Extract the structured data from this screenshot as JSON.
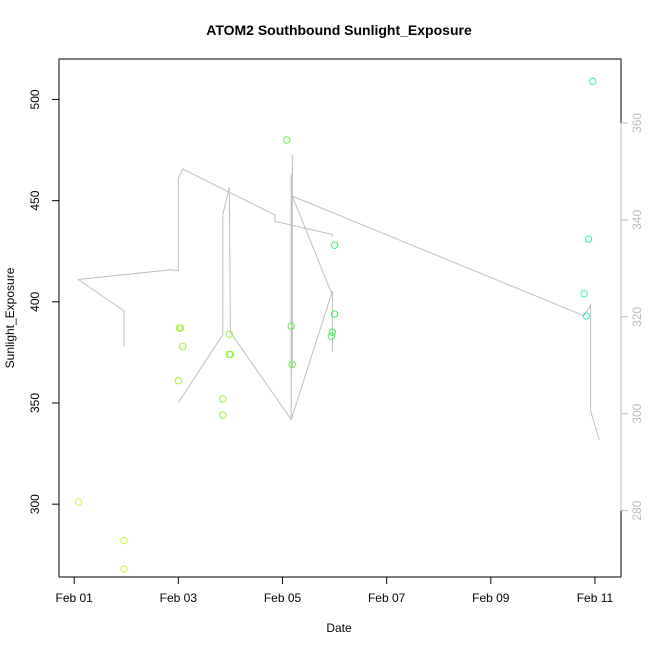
{
  "chart_data": {
    "type": "scatter",
    "title": "ATOM2 Southbound Sunlight_Exposure",
    "xlabel": "Date",
    "ylabel": "Sunlight_Exposure",
    "x_ticks": [
      "Feb 01",
      "Feb 03",
      "Feb 05",
      "Feb 07",
      "Feb 09",
      "Feb 11"
    ],
    "y_ticks": [
      300,
      350,
      400,
      450,
      500
    ],
    "y2_ticks": [
      280,
      300,
      320,
      340,
      360
    ],
    "xlim": [
      "2024-01-31 17:00",
      "2024-02-11 12:00"
    ],
    "ylim": [
      264,
      520
    ],
    "y2lim": [
      266.3,
      373.2
    ],
    "grid": false,
    "legend": "none",
    "colors": {
      "line": "#bebebe",
      "right_axis": "#bbbbbb",
      "point_early": "#c7f73a",
      "point_mid": "#3cf03c",
      "point_late": "#33f5a3"
    },
    "series": [
      {
        "type": "scatter",
        "axis": "left",
        "points": [
          {
            "x": "2024-02-01 02:00",
            "y": 301,
            "color": "#cff54a"
          },
          {
            "x": "2024-02-01 23:00",
            "y": 282,
            "color": "#c7f73a"
          },
          {
            "x": "2024-02-01 23:00",
            "y": 268,
            "color": "#c7f73a"
          },
          {
            "x": "2024-02-03 00:00",
            "y": 361,
            "color": "#a4f23a"
          },
          {
            "x": "2024-02-03 00:30",
            "y": 387,
            "color": "#a4f23a"
          },
          {
            "x": "2024-02-03 01:00",
            "y": 387,
            "color": "#a4f23a"
          },
          {
            "x": "2024-02-03 02:00",
            "y": 378,
            "color": "#a4f23a"
          },
          {
            "x": "2024-02-03 20:30",
            "y": 352,
            "color": "#8ef23a"
          },
          {
            "x": "2024-02-03 20:30",
            "y": 344,
            "color": "#8ef23a"
          },
          {
            "x": "2024-02-03 23:30",
            "y": 384,
            "color": "#8ef23a"
          },
          {
            "x": "2024-02-03 23:30",
            "y": 374,
            "color": "#8ef23a"
          },
          {
            "x": "2024-02-04 00:00",
            "y": 374,
            "color": "#8ef23a"
          },
          {
            "x": "2024-02-05 02:00",
            "y": 480,
            "color": "#5ef03c"
          },
          {
            "x": "2024-02-05 04:00",
            "y": 388,
            "color": "#5ef03c"
          },
          {
            "x": "2024-02-05 04:30",
            "y": 369,
            "color": "#5ef03c"
          },
          {
            "x": "2024-02-05 22:30",
            "y": 383,
            "color": "#3cf05a"
          },
          {
            "x": "2024-02-05 23:00",
            "y": 385,
            "color": "#3cf05a"
          },
          {
            "x": "2024-02-06 00:00",
            "y": 428,
            "color": "#3cf05a"
          },
          {
            "x": "2024-02-06 00:00",
            "y": 394,
            "color": "#3cf05a"
          },
          {
            "x": "2024-02-10 19:00",
            "y": 404,
            "color": "#33f5a3"
          },
          {
            "x": "2024-02-10 20:00",
            "y": 393,
            "color": "#33f5a3"
          },
          {
            "x": "2024-02-10 21:00",
            "y": 431,
            "color": "#33f5a3"
          },
          {
            "x": "2024-02-10 23:00",
            "y": 509,
            "color": "#33f5a3"
          }
        ]
      },
      {
        "type": "line",
        "axis": "right",
        "color": "#bebebe",
        "points": [
          {
            "x": "2024-02-01 23:00",
            "y": 314
          },
          {
            "x": "2024-02-01 23:00",
            "y": 321.2
          },
          {
            "x": "2024-02-01 02:00",
            "y": 327.7
          },
          {
            "x": "2024-02-02 20:30",
            "y": 329.7
          },
          {
            "x": "2024-02-02 20:30",
            "y": 329.7
          },
          {
            "x": "2024-02-03 00:00",
            "y": 329.5
          },
          {
            "x": "2024-02-03 00:00",
            "y": 348.6
          },
          {
            "x": "2024-02-03 02:00",
            "y": 350.5
          },
          {
            "x": "2024-02-04 20:30",
            "y": 341
          },
          {
            "x": "2024-02-04 20:30",
            "y": 339.7
          },
          {
            "x": "2024-02-05 23:00",
            "y": 337
          },
          {
            "x": "2024-02-05 23:00",
            "y": 336.6
          }
        ]
      },
      {
        "type": "line",
        "axis": "right",
        "color": "#bebebe",
        "points": [
          {
            "x": "2024-02-03 00:00",
            "y": 302.3
          },
          {
            "x": "2024-02-03 20:30",
            "y": 316.3
          },
          {
            "x": "2024-02-03 20:30",
            "y": 316.3
          },
          {
            "x": "2024-02-03 20:30",
            "y": 341.1
          },
          {
            "x": "2024-02-03 23:30",
            "y": 346.7
          },
          {
            "x": "2024-02-04 00:00",
            "y": 316.8
          },
          {
            "x": "2024-02-05 04:00",
            "y": 298.8
          },
          {
            "x": "2024-02-05 04:00",
            "y": 349.4
          },
          {
            "x": "2024-02-05 04:30",
            "y": 347.2
          },
          {
            "x": "2024-02-05 04:30",
            "y": 309.5
          },
          {
            "x": "2024-02-05 04:30",
            "y": 353.4
          },
          {
            "x": "2024-02-05 04:00",
            "y": 298.8
          },
          {
            "x": "2024-02-05 23:00",
            "y": 325.3
          },
          {
            "x": "2024-02-05 23:00",
            "y": 312.8
          },
          {
            "x": "2024-02-05 23:00",
            "y": 324.4
          },
          {
            "x": "2024-02-05 04:30",
            "y": 344.9
          },
          {
            "x": "2024-02-10 19:00",
            "y": 320.2
          },
          {
            "x": "2024-02-10 22:00",
            "y": 322.4
          },
          {
            "x": "2024-02-10 22:00",
            "y": 300.6
          },
          {
            "x": "2024-02-11 02:00",
            "y": 294.6
          }
        ]
      }
    ]
  }
}
